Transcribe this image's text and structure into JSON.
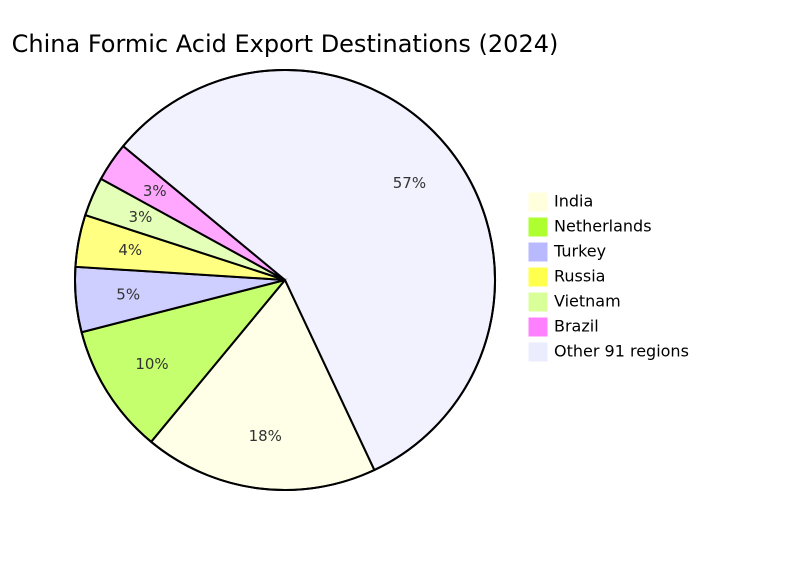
{
  "chart_data": {
    "type": "pie",
    "title": "China Formic Acid Export Destinations (2024)",
    "categories": [
      "India",
      "Netherlands",
      "Turkey",
      "Russia",
      "Vietnam",
      "Brazil",
      "Other 91 regions"
    ],
    "values": [
      18,
      10,
      5,
      4,
      3,
      3,
      57
    ],
    "value_labels": [
      "18%",
      "10%",
      "5%",
      "4%",
      "3%",
      "3%",
      "57%"
    ],
    "colors": [
      "#ffffde",
      "#adff2f",
      "#b9b9ff",
      "#ffff4d",
      "#d9ff99",
      "#ff80ff",
      "#ececff"
    ]
  }
}
